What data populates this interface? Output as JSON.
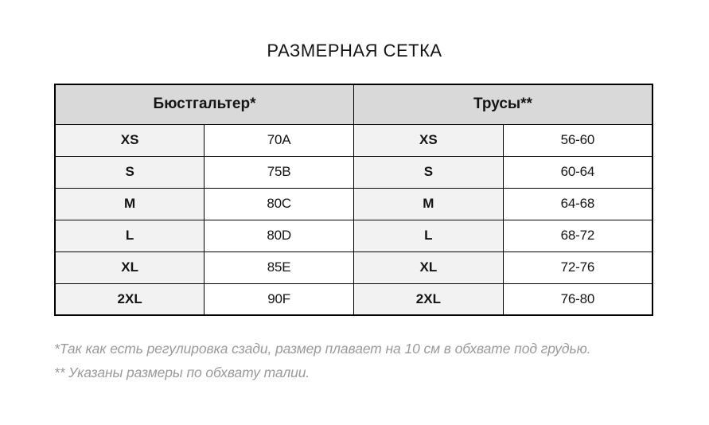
{
  "title": "РАЗМЕРНАЯ СЕТКА",
  "chart_data": {
    "type": "table",
    "title": "РАЗМЕРНАЯ СЕТКА",
    "column_groups": [
      {
        "label": "Бюстгальтер*",
        "span": 2
      },
      {
        "label": "Трусы**",
        "span": 2
      }
    ],
    "rows": [
      [
        "XS",
        "70A",
        "XS",
        "56-60"
      ],
      [
        "S",
        "75B",
        "S",
        "60-64"
      ],
      [
        "M",
        "80C",
        "M",
        "64-68"
      ],
      [
        "L",
        "80D",
        "L",
        "68-72"
      ],
      [
        "XL",
        "85E",
        "XL",
        "72-76"
      ],
      [
        "2XL",
        "90F",
        "2XL",
        "76-80"
      ]
    ],
    "footnotes": [
      "*Так как есть регулировка сзади, размер плавает на 10 см в обхвате под грудью.",
      "** Указаны размеры по обхвату талии."
    ]
  },
  "colors": {
    "header_bg": "#d9d9d9",
    "label_cell_bg": "#f2f2f2",
    "value_cell_bg": "#ffffff",
    "border": "#000000",
    "title_text": "#141414",
    "footnote_text": "#9a9a9a"
  }
}
